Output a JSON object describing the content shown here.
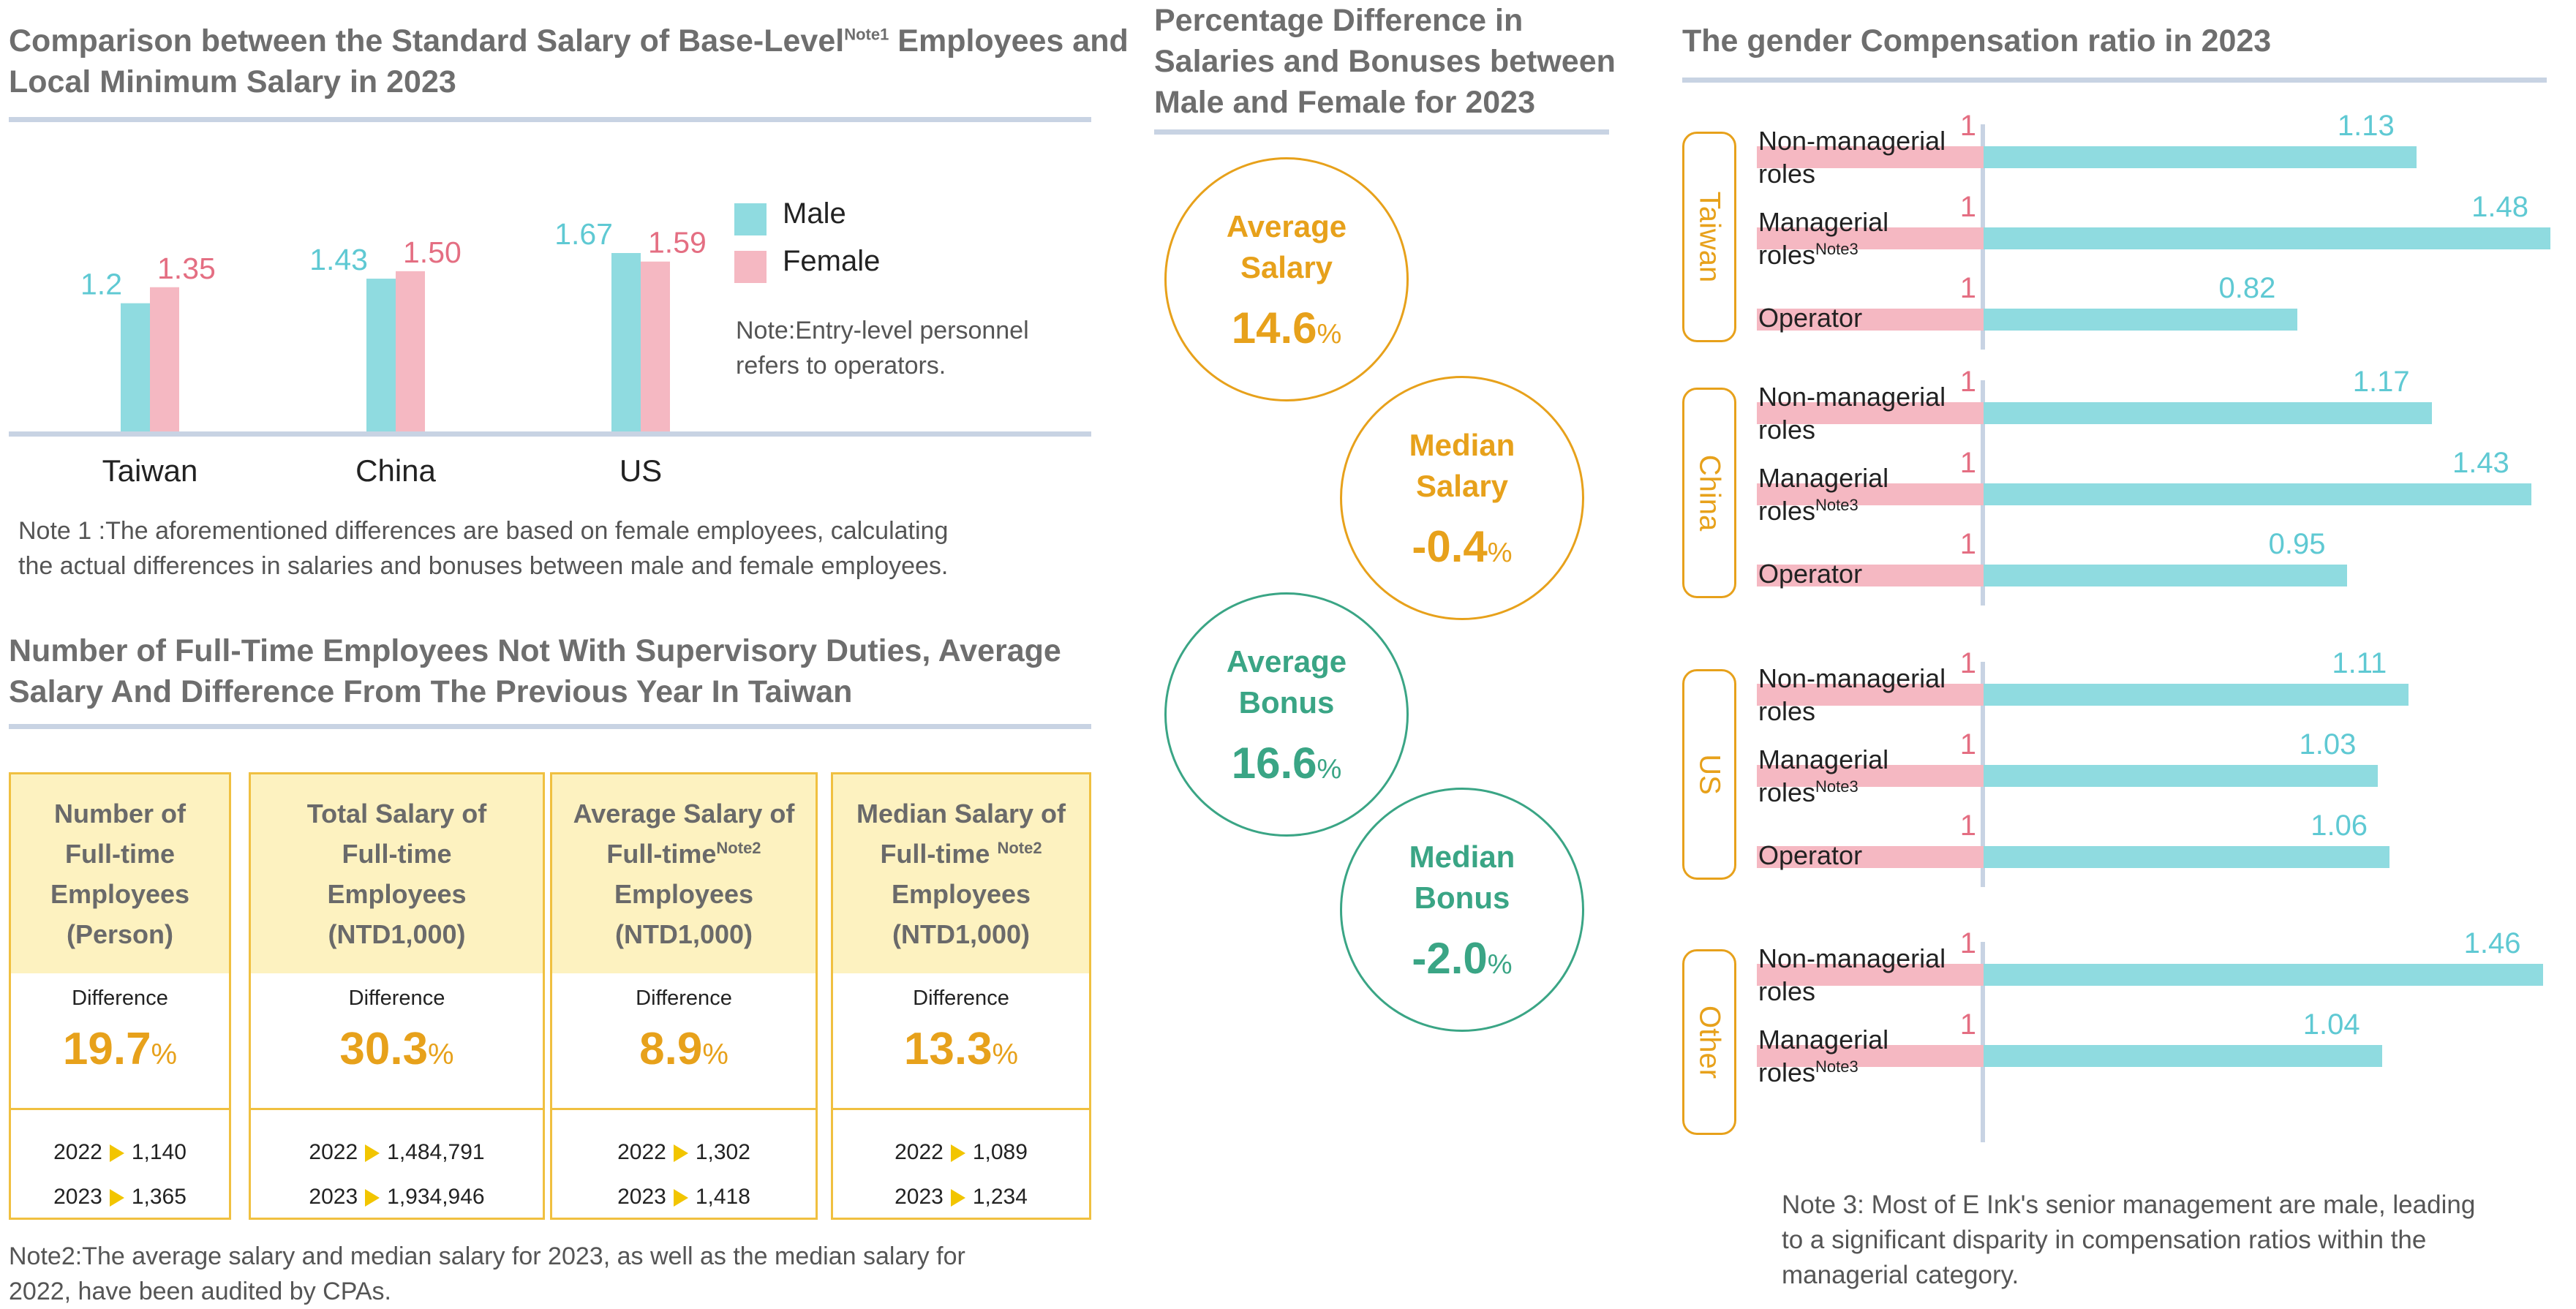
{
  "chart_data": [
    {
      "type": "bar",
      "title": "Comparison between the Standard Salary of Base-Level",
      "title_sup": "Note1",
      "title_tail": " Employees and",
      "title_line2": "Local Minimum Salary in 2023",
      "categories": [
        "Taiwan",
        "China",
        "US"
      ],
      "series": [
        {
          "name": "Male",
          "values": [
            1.2,
            1.43,
            1.67
          ],
          "labels": [
            "1.2",
            "1.43",
            "1.67"
          ],
          "color": "#8fdbe0"
        },
        {
          "name": "Female",
          "values": [
            1.35,
            1.5,
            1.59
          ],
          "labels": [
            "1.35",
            "1.50",
            "1.59"
          ],
          "color": "#f5b8c2"
        }
      ],
      "ylim": [
        0,
        1.7
      ],
      "legend": "right"
    },
    {
      "type": "bar",
      "orientation": "horizontal-stacked",
      "title": "The gender Compensation ratio in 2023",
      "groups": [
        {
          "region": "Taiwan",
          "rows": [
            {
              "label": "Non-managerial\nroles",
              "female": 1,
              "male": 1.13,
              "male_label": "1.13"
            },
            {
              "label": "Managerial\nroles",
              "sup": "Note3",
              "female": 1,
              "male": 1.48,
              "male_label": "1.48"
            },
            {
              "label": "Operator",
              "female": 1,
              "male": 0.82,
              "male_label": "0.82"
            }
          ]
        },
        {
          "region": "China",
          "rows": [
            {
              "label": "Non-managerial\nroles",
              "female": 1,
              "male": 1.17,
              "male_label": "1.17"
            },
            {
              "label": "Managerial\nroles",
              "sup": "Note3",
              "female": 1,
              "male": 1.43,
              "male_label": "1.43"
            },
            {
              "label": "Operator",
              "female": 1,
              "male": 0.95,
              "male_label": "0.95"
            }
          ]
        },
        {
          "region": "US",
          "rows": [
            {
              "label": "Non-managerial\nroles",
              "female": 1,
              "male": 1.11,
              "male_label": "1.11"
            },
            {
              "label": "Managerial\nroles",
              "sup": "Note3",
              "female": 1,
              "male": 1.03,
              "male_label": "1.03"
            },
            {
              "label": "Operator",
              "female": 1,
              "male": 1.06,
              "male_label": "1.06"
            }
          ]
        },
        {
          "region": "Other",
          "rows": [
            {
              "label": "Non-managerial\nroles",
              "female": 1,
              "male": 1.46,
              "male_label": "1.46"
            },
            {
              "label": "Managerial\nroles",
              "sup": "Note3",
              "female": 1,
              "male": 1.04,
              "male_label": "1.04"
            }
          ]
        }
      ],
      "colors": {
        "female": "#f5b8c2",
        "male": "#8fdbe0",
        "female_label": "#e46e82",
        "male_label": "#5fc9d3"
      }
    }
  ],
  "left": {
    "legend_male": "Male",
    "legend_female": "Female",
    "entry_note_1": "Note:Entry-level personnel",
    "entry_note_2": "refers to operators.",
    "note1_line1": "Note 1 :The aforementioned differences are based on female employees, calculating",
    "note1_line2": "the actual differences in salaries and bonuses between male and female employees.",
    "section2_line1": "Number of Full-Time Employees Not With Supervisory Duties, Average",
    "section2_line2": "Salary And Difference From The Previous Year In Taiwan",
    "note2_line1": "Note2:The average salary and median salary for 2023, as well as the median salary for",
    "note2_line2": "2022, have been audited by CPAs."
  },
  "cards": [
    {
      "l1": "Number of",
      "l2": "Full-time",
      "l3": "Employees",
      "l4": "(Person)",
      "sup": "",
      "diff_label": "Difference",
      "diff": "19.7",
      "pct": "%",
      "y1": "2022",
      "v1": "1,140",
      "y2": "2023",
      "v2": "1,365"
    },
    {
      "l1": "Total Salary of",
      "l2": "Full-time",
      "l3": "Employees",
      "l4": "(NTD1,000)",
      "sup": "",
      "diff_label": "Difference",
      "diff": "30.3",
      "pct": "%",
      "y1": "2022",
      "v1": "1,484,791",
      "y2": "2023",
      "v2": "1,934,946"
    },
    {
      "l1": "Average Salary of",
      "l2": "Full-time",
      "l3": "Employees",
      "l4": "(NTD1,000)",
      "sup": "Note2",
      "diff_label": "Difference",
      "diff": "8.9",
      "pct": "%",
      "y1": "2022",
      "v1": "1,302",
      "y2": "2023",
      "v2": "1,418"
    },
    {
      "l1": "Median Salary of",
      "l2": "Full-time ",
      "l3": "Employees",
      "l4": "(NTD1,000)",
      "sup": "Note2",
      "diff_label": "Difference",
      "diff": "13.3",
      "pct": "%",
      "y1": "2022",
      "v1": "1,089",
      "y2": "2023",
      "v2": "1,234"
    }
  ],
  "middle": {
    "title_l1": "Percentage Difference in",
    "title_l2": "Salaries and Bonuses between",
    "title_l3": "Male and Female for 2023",
    "circles": [
      {
        "l1": "Average",
        "l2": "Salary",
        "value": "14.6",
        "pct": "%",
        "color": "#e7a11b"
      },
      {
        "l1": "Median",
        "l2": "Salary",
        "value": "-0.4",
        "pct": "%",
        "color": "#e7a11b"
      },
      {
        "l1": "Average",
        "l2": "Bonus",
        "value": "16.6",
        "pct": "%",
        "color": "#3aa585"
      },
      {
        "l1": "Median",
        "l2": "Bonus",
        "value": "-2.0",
        "pct": "%",
        "color": "#3aa585"
      }
    ]
  },
  "right": {
    "note3_l1": "Note 3: Most of E Ink's senior management are male, leading",
    "note3_l2": "to a significant disparity in compensation ratios within the",
    "note3_l3": "managerial category."
  }
}
